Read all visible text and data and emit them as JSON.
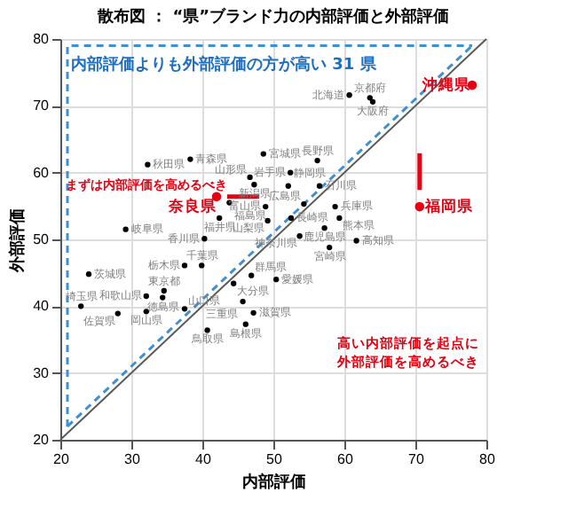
{
  "chart_data": {
    "type": "scatter",
    "title": "散布図 ： “県”ブランド力の内部評価と外部評価",
    "xlabel": "内部評価",
    "ylabel": "外部評価",
    "xlim": [
      20,
      80
    ],
    "ylim": [
      20,
      80
    ],
    "xticks": [
      20,
      30,
      40,
      50,
      60,
      70,
      80
    ],
    "yticks": [
      20,
      30,
      40,
      50,
      60,
      70,
      80
    ],
    "grid": true,
    "marker": "circle",
    "annotations": [
      "内部評価よりも外部評価の方が高い 31 県",
      "まずは内部評価を高めるべき",
      "高い内部評価を起点に外部評価を高めるべき"
    ],
    "series": [
      {
        "type": "line",
        "color": "#5a5a5a",
        "line_style": "solid",
        "marker": "none",
        "x": [
          20,
          80
        ],
        "values": [
          20,
          80
        ]
      },
      {
        "type": "line",
        "color": "#3d8fd6",
        "line_style": "dashed",
        "marker": "none",
        "x": [
          21,
          78
        ],
        "values": [
          22,
          79
        ]
      },
      {
        "type": "line",
        "color": "#3d8fd6",
        "line_style": "dashed",
        "marker": "none",
        "x": [
          21,
          21,
          78
        ],
        "values": [
          22,
          79,
          79
        ]
      },
      {
        "color": "#000000",
        "x": [
          60.7,
          63.6,
          64.0,
          48.6,
          38.3,
          32.3,
          56.2,
          52.4,
          46.7,
          47.3,
          52.1,
          56.5,
          43.8,
          54.3,
          58.7,
          48.9,
          42.4,
          49.2,
          52.5,
          59.3,
          57.2,
          29.2,
          40.3,
          53.7,
          61.7,
          57.9,
          37.5,
          39.9,
          24.0,
          46.9,
          50.4,
          44.4,
          34.6,
          32.1,
          34.4,
          45.7,
          22.9,
          37.5,
          32.1,
          47.2,
          28.1,
          46.1,
          40.7
        ],
        "values": [
          71.6,
          71.2,
          70.6,
          62.8,
          62.0,
          61.2,
          61.8,
          60.0,
          59.3,
          58.2,
          58.0,
          58.0,
          55.5,
          55.3,
          54.9,
          54.9,
          53.2,
          52.8,
          53.2,
          53.2,
          51.7,
          51.5,
          50.1,
          50.5,
          49.8,
          48.8,
          46.1,
          46.1,
          44.8,
          44.6,
          44.0,
          43.4,
          42.3,
          41.5,
          41.3,
          40.7,
          40.0,
          39.6,
          39.2,
          39.0,
          38.9,
          37.3,
          36.4
        ],
        "value_labels": [
          "北海道",
          "京都府",
          "大阪府",
          "宮城県",
          "青森県",
          "秋田県",
          "長野県",
          "岩手県",
          "山形県",
          "新潟県",
          "静岡県",
          "石川県",
          "福島県",
          "広島県",
          "兵庫県",
          "富山県",
          "福井県",
          "山梨県",
          "長崎県",
          "熊本県",
          "鹿児島県",
          "岐阜県",
          "香川県",
          "神奈川県",
          "高知県",
          "宮崎県",
          "栃木県",
          "千葉県",
          "茨城県",
          "群馬県",
          "愛媛県",
          "大分県",
          "東京都",
          "和歌山県",
          "徳島県",
          "三重県",
          "埼玉県",
          "山口県",
          "岡山県",
          "滋賀県",
          "佐賀県",
          "島根県",
          "鳥取県"
        ]
      },
      {
        "color": "#e60012",
        "x": [
          78.0,
          42.0,
          70.6
        ],
        "values": [
          73.1,
          56.4,
          54.9
        ],
        "value_labels": [
          "沖縄県",
          "奈良県",
          "福岡県"
        ]
      }
    ]
  }
}
